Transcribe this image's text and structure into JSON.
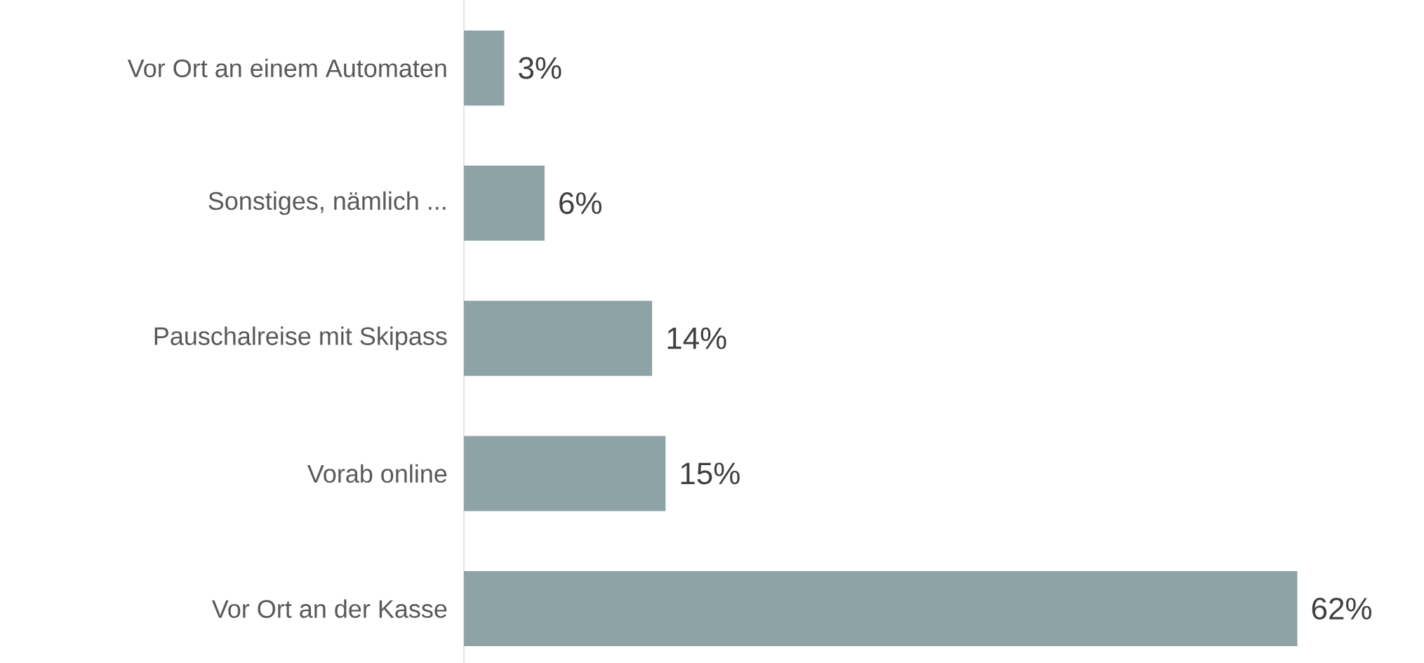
{
  "chart_data": {
    "type": "bar",
    "orientation": "horizontal",
    "categories": [
      "Vor Ort an einem Automaten",
      "Sonstiges, nämlich ...",
      "Pauschalreise mit Skipass",
      "Vorab online",
      "Vor Ort an der Kasse"
    ],
    "values": [
      3,
      6,
      14,
      15,
      62
    ],
    "value_labels": [
      "3%",
      "6%",
      "14%",
      "15%",
      "62%"
    ],
    "color": "#8da3a6"
  }
}
